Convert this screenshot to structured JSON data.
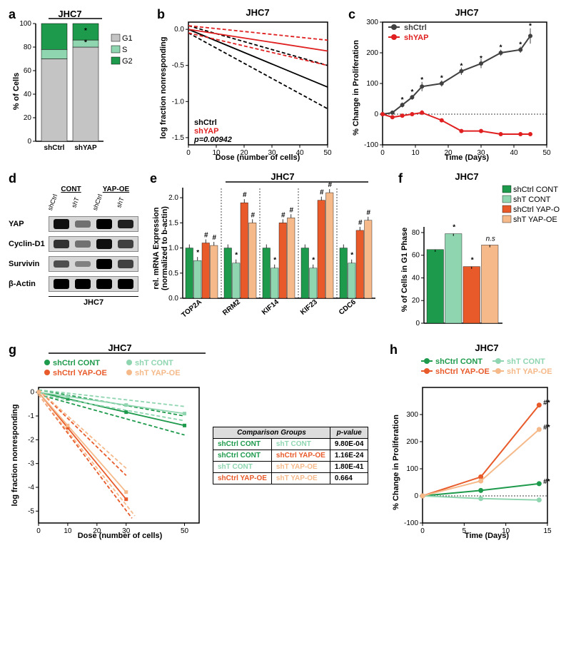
{
  "colors": {
    "g1": "#c4c4c4",
    "s": "#8fd5b0",
    "g2": "#1e9a4c",
    "shCtrl_black": "#000000",
    "shYAP_red": "#e02020",
    "shCtrl_cont_dark": "#1e9a4c",
    "shT_cont_light": "#8fd5b0",
    "shCtrl_yapoe_orange": "#e85a2a",
    "shT_yapoe_peach": "#f5b98a",
    "axis": "#000000",
    "grid": "#ffffff"
  },
  "panel_a": {
    "label": "a",
    "title": "JHC7",
    "ylabel": "% of Cells",
    "categories": [
      "shCtrl",
      "shYAP"
    ],
    "legend": [
      "G1",
      "S",
      "G2"
    ],
    "data": {
      "shCtrl": {
        "G1": 70,
        "S": 8,
        "G2": 22
      },
      "shYAP": {
        "G1": 80,
        "S": 6,
        "G2": 14
      }
    },
    "yticks": [
      0,
      20,
      40,
      60,
      80,
      100
    ],
    "star_positions": [
      {
        "group": "shYAP",
        "y": 82
      },
      {
        "group": "shYAP",
        "y": 92
      }
    ]
  },
  "panel_b": {
    "label": "b",
    "title": "JHC7",
    "xlabel": "Dose (number of cells)",
    "ylabel": "log fraction nonresponding",
    "xlim": [
      0,
      50
    ],
    "ylim": [
      -1.6,
      0.1
    ],
    "xticks": [
      0,
      10,
      20,
      30,
      40,
      50
    ],
    "yticks": [
      0,
      -0.5,
      -1,
      -1.5
    ],
    "ytick_labels": [
      "0.0",
      "-0.5",
      "-1.0",
      "-1.5"
    ],
    "legend": [
      {
        "name": "shCtrl",
        "color": "#000000"
      },
      {
        "name": "shYAP",
        "color": "#e02020"
      }
    ],
    "pvalue": "p=0.00942",
    "lines": [
      {
        "color": "#000000",
        "dash": "none",
        "pts": [
          [
            0,
            0
          ],
          [
            50,
            -0.8
          ]
        ]
      },
      {
        "color": "#000000",
        "dash": "5,3",
        "pts": [
          [
            0,
            0.05
          ],
          [
            50,
            -0.5
          ]
        ]
      },
      {
        "color": "#000000",
        "dash": "5,3",
        "pts": [
          [
            0,
            -0.05
          ],
          [
            50,
            -1.1
          ]
        ]
      },
      {
        "color": "#e02020",
        "dash": "none",
        "pts": [
          [
            0,
            0
          ],
          [
            50,
            -0.3
          ]
        ]
      },
      {
        "color": "#e02020",
        "dash": "5,3",
        "pts": [
          [
            0,
            0.05
          ],
          [
            50,
            -0.15
          ]
        ]
      },
      {
        "color": "#e02020",
        "dash": "5,3",
        "pts": [
          [
            0,
            -0.05
          ],
          [
            50,
            -0.5
          ]
        ]
      }
    ]
  },
  "panel_c": {
    "label": "c",
    "title": "JHC7",
    "xlabel": "Time (Days)",
    "ylabel": "% Change in Proliferation",
    "xlim": [
      0,
      50
    ],
    "ylim": [
      -100,
      300
    ],
    "xticks": [
      0,
      10,
      20,
      30,
      40,
      50
    ],
    "yticks": [
      -100,
      0,
      100,
      200,
      300
    ],
    "legend": [
      {
        "name": "shCtrl",
        "color": "#404040"
      },
      {
        "name": "shYAP",
        "color": "#e02020"
      }
    ],
    "series": [
      {
        "color": "#404040",
        "pts": [
          [
            0,
            0
          ],
          [
            3,
            5
          ],
          [
            6,
            30
          ],
          [
            9,
            55
          ],
          [
            12,
            90
          ],
          [
            18,
            100
          ],
          [
            24,
            140
          ],
          [
            30,
            165
          ],
          [
            36,
            200
          ],
          [
            42,
            210
          ],
          [
            45,
            255
          ]
        ],
        "err": [
          5,
          5,
          8,
          8,
          15,
          10,
          12,
          15,
          10,
          10,
          25
        ]
      },
      {
        "color": "#e02020",
        "pts": [
          [
            0,
            0
          ],
          [
            3,
            -10
          ],
          [
            6,
            -5
          ],
          [
            9,
            0
          ],
          [
            12,
            5
          ],
          [
            18,
            -20
          ],
          [
            24,
            -55
          ],
          [
            30,
            -55
          ],
          [
            36,
            -65
          ],
          [
            42,
            -65
          ],
          [
            45,
            -65
          ]
        ],
        "err": [
          5,
          5,
          5,
          5,
          8,
          5,
          5,
          5,
          5,
          5,
          5
        ]
      }
    ],
    "stars": [
      [
        6,
        40
      ],
      [
        9,
        65
      ],
      [
        12,
        105
      ],
      [
        18,
        110
      ],
      [
        24,
        150
      ],
      [
        30,
        175
      ],
      [
        36,
        210
      ],
      [
        42,
        220
      ],
      [
        45,
        280
      ]
    ]
  },
  "panel_d": {
    "label": "d",
    "groups": [
      "CONT",
      "YAP-OE"
    ],
    "lanes": [
      "shCtrl",
      "shT",
      "shCtrl",
      "shT"
    ],
    "proteins": [
      "YAP",
      "Cyclin-D1",
      "Survivin",
      "β-Actin"
    ],
    "cell_line": "JHC7",
    "intensity": {
      "YAP": [
        0.9,
        0.3,
        1.0,
        0.8
      ],
      "Cyclin-D1": [
        0.7,
        0.3,
        0.9,
        0.6
      ],
      "Survivin": [
        0.5,
        0.2,
        1.0,
        0.6
      ],
      "β-Actin": [
        1.0,
        1.0,
        1.0,
        1.0
      ]
    }
  },
  "panel_e": {
    "label": "e",
    "title": "JHC7",
    "ylabel": "rel. mRNA Expression\n(normalized to b-actin)",
    "genes": [
      "TOP2A",
      "RRM2",
      "KIF14",
      "KIF23",
      "CDC6"
    ],
    "groups": [
      "shCtrl CONT",
      "shT CONT",
      "shCtrl YAP-OE",
      "shT YAP-OE"
    ],
    "colors": [
      "#1e9a4c",
      "#8fd5b0",
      "#e85a2a",
      "#f5b98a"
    ],
    "ylim": [
      0,
      2.2
    ],
    "yticks": [
      0.0,
      0.5,
      1.0,
      1.5,
      2.0
    ],
    "data": {
      "TOP2A": [
        1.0,
        0.75,
        1.1,
        1.05
      ],
      "RRM2": [
        1.0,
        0.7,
        1.9,
        1.5
      ],
      "KIF14": [
        1.0,
        0.6,
        1.5,
        1.6
      ],
      "KIF23": [
        1.0,
        0.6,
        1.95,
        2.1
      ],
      "CDC6": [
        1.0,
        0.7,
        1.35,
        1.55
      ]
    },
    "markers": {
      "TOP2A": [
        "",
        "*",
        "#",
        "#"
      ],
      "RRM2": [
        "",
        "*",
        "#",
        "#"
      ],
      "KIF14": [
        "",
        "*",
        "#",
        "#"
      ],
      "KIF23": [
        "",
        "*",
        "#",
        "#"
      ],
      "CDC6": [
        "",
        "*",
        "#",
        "#"
      ]
    }
  },
  "panel_f": {
    "label": "f",
    "title": "JHC7",
    "ylabel": "% of Cells in G1 Phase",
    "groups": [
      "shCtrl CONT",
      "shT CONT",
      "shCtrl YAP-OE",
      "shT YAP-OE"
    ],
    "colors": [
      "#1e9a4c",
      "#8fd5b0",
      "#e85a2a",
      "#f5b98a"
    ],
    "ylim": [
      0,
      85
    ],
    "yticks": [
      0,
      20,
      40,
      60,
      80
    ],
    "values": [
      65,
      79,
      50,
      69
    ],
    "err": [
      2,
      2,
      2,
      2
    ],
    "markers": [
      "",
      "*",
      "*",
      "n.s"
    ]
  },
  "panel_g": {
    "label": "g",
    "title": "JHC7",
    "xlabel": "Dose (number of cells)",
    "ylabel": "log fraction nonresponding",
    "xlim": [
      0,
      55
    ],
    "ylim": [
      -5.5,
      0.2
    ],
    "xticks": [
      0,
      10,
      20,
      30,
      50
    ],
    "yticks": [
      0,
      -1,
      -2,
      -3,
      -4,
      -5
    ],
    "legend": [
      {
        "name": "shCtrl CONT",
        "color": "#1e9a4c"
      },
      {
        "name": "shT CONT",
        "color": "#8fd5b0"
      },
      {
        "name": "shCtrl YAP-OE",
        "color": "#e85a2a"
      },
      {
        "name": "shT YAP-OE",
        "color": "#f5b98a"
      }
    ],
    "lines": [
      {
        "color": "#1e9a4c",
        "dash": "none",
        "pts": [
          [
            0,
            0
          ],
          [
            50,
            -1.4
          ]
        ]
      },
      {
        "color": "#1e9a4c",
        "dash": "5,3",
        "pts": [
          [
            0,
            0.1
          ],
          [
            50,
            -1.0
          ]
        ]
      },
      {
        "color": "#1e9a4c",
        "dash": "5,3",
        "pts": [
          [
            0,
            -0.1
          ],
          [
            50,
            -1.8
          ]
        ]
      },
      {
        "color": "#8fd5b0",
        "dash": "none",
        "pts": [
          [
            0,
            0
          ],
          [
            50,
            -0.9
          ]
        ]
      },
      {
        "color": "#8fd5b0",
        "dash": "5,3",
        "pts": [
          [
            0,
            0.1
          ],
          [
            50,
            -0.6
          ]
        ]
      },
      {
        "color": "#8fd5b0",
        "dash": "5,3",
        "pts": [
          [
            0,
            -0.1
          ],
          [
            50,
            -1.2
          ]
        ]
      },
      {
        "color": "#e85a2a",
        "dash": "none",
        "pts": [
          [
            0,
            0
          ],
          [
            30,
            -4.5
          ]
        ]
      },
      {
        "color": "#e85a2a",
        "dash": "5,3",
        "pts": [
          [
            0,
            0.1
          ],
          [
            30,
            -3.5
          ]
        ]
      },
      {
        "color": "#e85a2a",
        "dash": "5,3",
        "pts": [
          [
            0,
            -0.1
          ],
          [
            32,
            -5.3
          ]
        ]
      },
      {
        "color": "#f5b98a",
        "dash": "none",
        "pts": [
          [
            0,
            0
          ],
          [
            30,
            -4.2
          ]
        ]
      },
      {
        "color": "#f5b98a",
        "dash": "5,3",
        "pts": [
          [
            0,
            0.1
          ],
          [
            30,
            -3.2
          ]
        ]
      },
      {
        "color": "#f5b98a",
        "dash": "5,3",
        "pts": [
          [
            0,
            -0.1
          ],
          [
            33,
            -5.2
          ]
        ]
      }
    ],
    "table": {
      "header": [
        "Comparison Groups",
        "p-value"
      ],
      "rows": [
        [
          {
            "t": "shCtrl CONT",
            "c": "#1e9a4c"
          },
          {
            "t": "shT CONT",
            "c": "#8fd5b0"
          },
          "9.80E-04"
        ],
        [
          {
            "t": "shCtrl CONT",
            "c": "#1e9a4c"
          },
          {
            "t": "shCtrl YAP-OE",
            "c": "#e85a2a"
          },
          "1.16E-24"
        ],
        [
          {
            "t": "shT CONT",
            "c": "#8fd5b0"
          },
          {
            "t": "shT YAP-OE",
            "c": "#f5b98a"
          },
          "1.80E-41"
        ],
        [
          {
            "t": "shCtrl YAP-OE",
            "c": "#e85a2a"
          },
          {
            "t": "shT YAP-OE",
            "c": "#f5b98a"
          },
          "0.664"
        ]
      ]
    }
  },
  "panel_h": {
    "label": "h",
    "title": "JHC7",
    "xlabel": "Time (Days)",
    "ylabel": "% Change in Proliferation",
    "xlim": [
      0,
      15
    ],
    "ylim": [
      -100,
      400
    ],
    "xticks": [
      0,
      5,
      10,
      15
    ],
    "yticks": [
      -100,
      0,
      100,
      200,
      300
    ],
    "legend": [
      {
        "name": "shCtrl CONT",
        "color": "#1e9a4c"
      },
      {
        "name": "shT CONT",
        "color": "#8fd5b0"
      },
      {
        "name": "shCtrl YAP-OE",
        "color": "#e85a2a"
      },
      {
        "name": "shT YAP-OE",
        "color": "#f5b98a"
      }
    ],
    "series": [
      {
        "color": "#1e9a4c",
        "pts": [
          [
            0,
            0
          ],
          [
            7,
            20
          ],
          [
            14,
            45
          ]
        ]
      },
      {
        "color": "#8fd5b0",
        "pts": [
          [
            0,
            0
          ],
          [
            7,
            -10
          ],
          [
            14,
            -15
          ]
        ]
      },
      {
        "color": "#e85a2a",
        "pts": [
          [
            0,
            0
          ],
          [
            7,
            70
          ],
          [
            14,
            335
          ]
        ]
      },
      {
        "color": "#f5b98a",
        "pts": [
          [
            0,
            0
          ],
          [
            7,
            55
          ],
          [
            14,
            245
          ]
        ]
      }
    ],
    "markers": [
      {
        "x": 14.5,
        "y": 335,
        "t": "#*"
      },
      {
        "x": 14.5,
        "y": 245,
        "t": "#*"
      },
      {
        "x": 14.5,
        "y": 45,
        "t": "#*"
      }
    ]
  }
}
